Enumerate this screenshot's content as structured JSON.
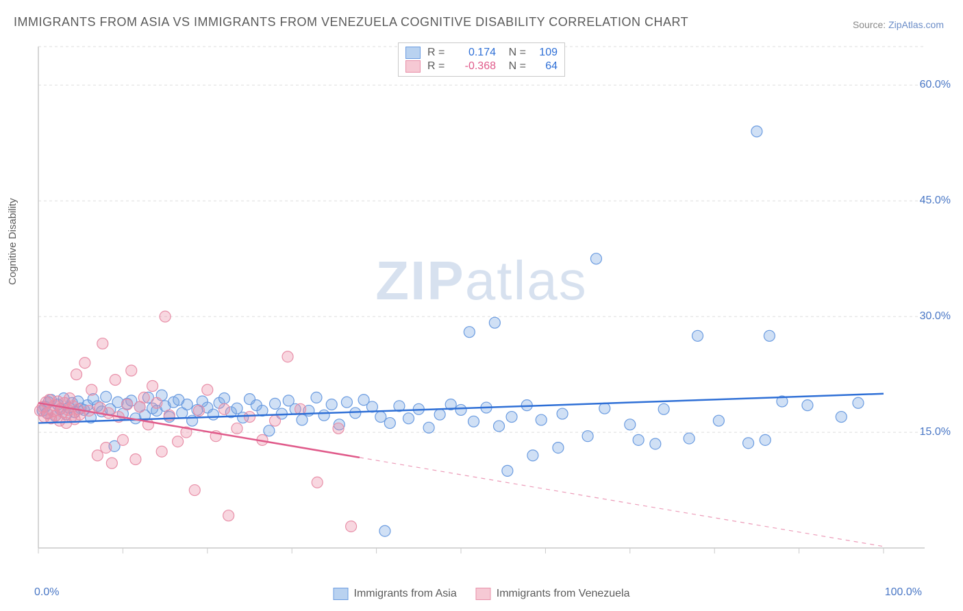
{
  "title": "IMMIGRANTS FROM ASIA VS IMMIGRANTS FROM VENEZUELA COGNITIVE DISABILITY CORRELATION CHART",
  "source_prefix": "Source: ",
  "source_link": "ZipAtlas.com",
  "ylabel": "Cognitive Disability",
  "watermark_bold": "ZIP",
  "watermark_rest": "atlas",
  "chart": {
    "type": "scatter",
    "background_color": "#ffffff",
    "grid_color": "#dddddd",
    "axis_color": "#c9c9c9",
    "xlim": [
      0,
      100
    ],
    "ylim": [
      0,
      65
    ],
    "x_ticks": [
      0,
      10,
      20,
      30,
      40,
      50,
      60,
      70,
      80,
      90,
      100
    ],
    "y_ticks": [
      15,
      30,
      45,
      60
    ],
    "y_tick_labels": [
      "15.0%",
      "30.0%",
      "45.0%",
      "60.0%"
    ],
    "x_axis_min_label": "0.0%",
    "x_axis_max_label": "100.0%",
    "marker_radius": 8,
    "marker_opacity": 0.55,
    "trend_line_width": 2.5,
    "series": [
      {
        "name": "Immigrants from Asia",
        "swatch_fill": "#b9d2f0",
        "swatch_stroke": "#6a9be0",
        "marker_fill": "rgba(120,165,225,0.35)",
        "marker_stroke": "#6a9be0",
        "trend_color": "#2e6fd6",
        "R": "0.174",
        "N": "109",
        "trend_line": {
          "x1": 0,
          "y1": 16.2,
          "x2": 100,
          "y2": 20.0
        },
        "extrapolate_dashed": false,
        "data_x_max": 100,
        "points": [
          [
            0.5,
            17.8
          ],
          [
            0.8,
            18.3
          ],
          [
            1,
            17.5
          ],
          [
            1.2,
            18.9
          ],
          [
            1.5,
            19.2
          ],
          [
            2,
            17.1
          ],
          [
            2.3,
            18.6
          ],
          [
            2.6,
            18.0
          ],
          [
            3,
            19.4
          ],
          [
            3.3,
            17.3
          ],
          [
            3.6,
            18.2
          ],
          [
            4,
            18.8
          ],
          [
            4.3,
            17.6
          ],
          [
            4.7,
            19.0
          ],
          [
            5,
            18.1
          ],
          [
            5.4,
            17.9
          ],
          [
            5.8,
            18.5
          ],
          [
            6.2,
            16.9
          ],
          [
            6.5,
            19.3
          ],
          [
            7,
            18.4
          ],
          [
            7.5,
            17.7
          ],
          [
            8,
            19.6
          ],
          [
            8.5,
            18.0
          ],
          [
            9,
            13.2
          ],
          [
            9.4,
            18.9
          ],
          [
            10,
            17.4
          ],
          [
            10.5,
            18.7
          ],
          [
            11,
            19.1
          ],
          [
            11.5,
            16.8
          ],
          [
            12,
            18.3
          ],
          [
            12.6,
            17.2
          ],
          [
            13,
            19.5
          ],
          [
            13.5,
            18.1
          ],
          [
            14,
            17.8
          ],
          [
            14.6,
            19.8
          ],
          [
            15,
            18.4
          ],
          [
            15.5,
            17.0
          ],
          [
            16,
            18.9
          ],
          [
            16.6,
            19.2
          ],
          [
            17,
            17.5
          ],
          [
            17.6,
            18.6
          ],
          [
            18.2,
            16.5
          ],
          [
            18.8,
            17.9
          ],
          [
            19.4,
            19.0
          ],
          [
            20,
            18.2
          ],
          [
            20.7,
            17.3
          ],
          [
            21.4,
            18.8
          ],
          [
            22,
            19.4
          ],
          [
            22.8,
            17.6
          ],
          [
            23.5,
            18.1
          ],
          [
            24.2,
            16.9
          ],
          [
            25,
            19.3
          ],
          [
            25.8,
            18.5
          ],
          [
            26.5,
            17.8
          ],
          [
            27.3,
            15.2
          ],
          [
            28,
            18.7
          ],
          [
            28.8,
            17.4
          ],
          [
            29.6,
            19.1
          ],
          [
            30.4,
            18.0
          ],
          [
            31.2,
            16.6
          ],
          [
            32,
            17.8
          ],
          [
            32.9,
            19.5
          ],
          [
            33.8,
            17.2
          ],
          [
            34.7,
            18.6
          ],
          [
            35.6,
            16.0
          ],
          [
            36.5,
            18.9
          ],
          [
            37.5,
            17.5
          ],
          [
            38.5,
            19.2
          ],
          [
            39.5,
            18.3
          ],
          [
            40.5,
            17.0
          ],
          [
            41,
            2.2
          ],
          [
            41.6,
            16.2
          ],
          [
            42.7,
            18.4
          ],
          [
            43.8,
            16.8
          ],
          [
            45,
            18.0
          ],
          [
            46.2,
            15.6
          ],
          [
            47.5,
            17.3
          ],
          [
            48.8,
            18.6
          ],
          [
            50,
            17.9
          ],
          [
            51,
            28.0
          ],
          [
            51.5,
            16.4
          ],
          [
            53,
            18.2
          ],
          [
            54,
            29.2
          ],
          [
            54.5,
            15.8
          ],
          [
            55.5,
            10.0
          ],
          [
            56,
            17.0
          ],
          [
            57.8,
            18.5
          ],
          [
            58.5,
            12.0
          ],
          [
            59.5,
            16.6
          ],
          [
            61.5,
            13.0
          ],
          [
            62,
            17.4
          ],
          [
            65,
            14.5
          ],
          [
            66,
            37.5
          ],
          [
            67,
            18.1
          ],
          [
            70,
            16.0
          ],
          [
            71,
            14.0
          ],
          [
            73,
            13.5
          ],
          [
            74,
            18.0
          ],
          [
            77,
            14.2
          ],
          [
            78,
            27.5
          ],
          [
            80.5,
            16.5
          ],
          [
            84,
            13.6
          ],
          [
            85,
            54.0
          ],
          [
            86,
            14.0
          ],
          [
            86.5,
            27.5
          ],
          [
            88,
            19.0
          ],
          [
            91,
            18.5
          ],
          [
            95,
            17.0
          ],
          [
            97,
            18.8
          ]
        ]
      },
      {
        "name": "Immigrants from Venezuela",
        "swatch_fill": "#f6c9d4",
        "swatch_stroke": "#e88fa8",
        "marker_fill": "rgba(235,140,165,0.35)",
        "marker_stroke": "#e88fa8",
        "trend_color": "#e05a8a",
        "R": "-0.368",
        "N": "64",
        "trend_line": {
          "x1": 0,
          "y1": 18.8,
          "x2": 100,
          "y2": 0.2
        },
        "extrapolate_dashed": true,
        "data_x_max": 38,
        "points": [
          [
            0.2,
            17.8
          ],
          [
            0.5,
            18.3
          ],
          [
            0.7,
            17.0
          ],
          [
            0.9,
            18.9
          ],
          [
            1.1,
            17.4
          ],
          [
            1.3,
            19.2
          ],
          [
            1.5,
            16.8
          ],
          [
            1.7,
            17.7
          ],
          [
            1.9,
            18.5
          ],
          [
            2.1,
            17.2
          ],
          [
            2.3,
            19.0
          ],
          [
            2.5,
            16.5
          ],
          [
            2.7,
            18.1
          ],
          [
            2.9,
            17.6
          ],
          [
            3.1,
            18.8
          ],
          [
            3.3,
            16.2
          ],
          [
            3.5,
            17.9
          ],
          [
            3.7,
            19.4
          ],
          [
            3.9,
            17.0
          ],
          [
            4.1,
            18.4
          ],
          [
            4.3,
            16.7
          ],
          [
            4.5,
            22.5
          ],
          [
            4.7,
            18.0
          ],
          [
            4.9,
            17.3
          ],
          [
            5.5,
            24.0
          ],
          [
            6.0,
            17.8
          ],
          [
            6.3,
            20.5
          ],
          [
            7.0,
            12.0
          ],
          [
            7.3,
            18.2
          ],
          [
            7.6,
            26.5
          ],
          [
            8.0,
            13.0
          ],
          [
            8.3,
            17.5
          ],
          [
            8.7,
            11.0
          ],
          [
            9.1,
            21.8
          ],
          [
            9.5,
            17.0
          ],
          [
            10.0,
            14.0
          ],
          [
            10.5,
            18.6
          ],
          [
            11.0,
            23.0
          ],
          [
            11.5,
            11.5
          ],
          [
            12.0,
            18.3
          ],
          [
            12.5,
            19.5
          ],
          [
            13.0,
            16.0
          ],
          [
            13.5,
            21.0
          ],
          [
            14.0,
            18.8
          ],
          [
            14.6,
            12.5
          ],
          [
            15.0,
            30.0
          ],
          [
            15.5,
            17.2
          ],
          [
            16.5,
            13.8
          ],
          [
            17.5,
            15.0
          ],
          [
            18.5,
            7.5
          ],
          [
            19.0,
            17.8
          ],
          [
            20.0,
            20.5
          ],
          [
            21.0,
            14.5
          ],
          [
            22.0,
            18.0
          ],
          [
            22.5,
            4.2
          ],
          [
            23.5,
            15.5
          ],
          [
            25.0,
            17.0
          ],
          [
            26.5,
            14.0
          ],
          [
            28.0,
            16.5
          ],
          [
            29.5,
            24.8
          ],
          [
            31.0,
            18.0
          ],
          [
            33.0,
            8.5
          ],
          [
            35.5,
            15.5
          ],
          [
            37.0,
            2.8
          ]
        ]
      }
    ]
  },
  "legend_labels": {
    "R": "R =",
    "N": "N ="
  }
}
